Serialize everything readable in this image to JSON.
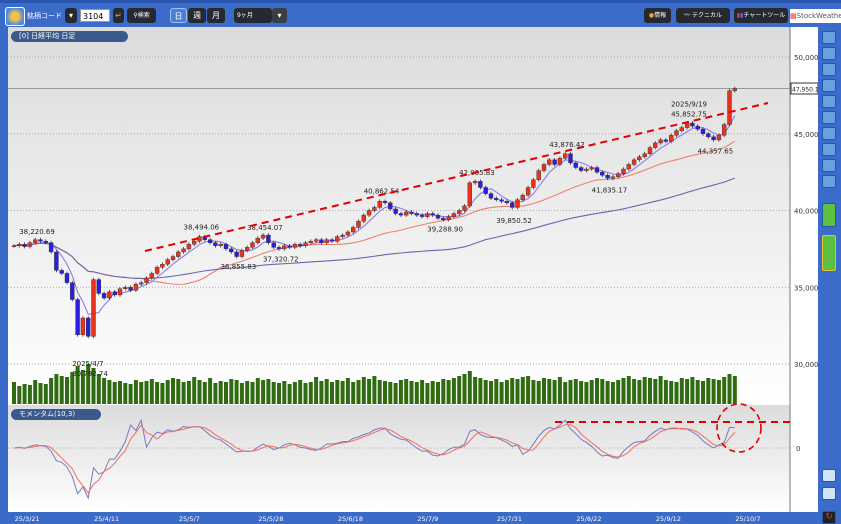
{
  "toolbar": {
    "stock_code_label": "銘柄コード",
    "stock_code_value": "3104",
    "search_label": "検索",
    "period_tabs": [
      "日",
      "週",
      "月"
    ],
    "active_period": "日",
    "range_select": "9ヶ月",
    "info_label": "情報",
    "technical_label": "テクニカル",
    "chart_tool_label": "チャートツール",
    "brand": "StockWeather"
  },
  "main_pane_title": "[0] 日経平均 日足",
  "indicator_pane_title": "モメンタム(10,3)",
  "price_axis_ticks": [
    "50,000",
    "45,000",
    "40,000",
    "35,000",
    "30,000"
  ],
  "price_axis_values": [
    50000,
    45000,
    40000,
    35000,
    30000
  ],
  "current_price_label": "47,950.1",
  "indicator_axis_tick": "0",
  "colors": {
    "up": "#e8331c",
    "down": "#2a1fe0",
    "ma_short": "#8c7ce8",
    "ma_mid": "#f08070",
    "ma_long": "#6a66b0",
    "volume": "#2f6b10",
    "annotation": "#e00000",
    "momentum": "#7a78c0",
    "signal": "#f07060"
  },
  "chart_data": {
    "type": "candlestick",
    "ylim": [
      29000,
      51500
    ],
    "grid": true,
    "close": [
      37700,
      37800,
      37650,
      37900,
      38100,
      38000,
      37900,
      37300,
      36100,
      35900,
      35300,
      34200,
      31900,
      33000,
      31800,
      35500,
      34600,
      34300,
      34700,
      34500,
      34900,
      35000,
      34800,
      35200,
      35300,
      35600,
      35900,
      36300,
      36500,
      36800,
      37000,
      37300,
      37500,
      37800,
      38000,
      38300,
      38100,
      37900,
      37700,
      37800,
      37500,
      37300,
      37000,
      37400,
      37600,
      37900,
      38200,
      38400,
      37900,
      37600,
      37500,
      37700,
      37600,
      37800,
      37700,
      37900,
      38000,
      38100,
      37900,
      38100,
      38000,
      38300,
      38400,
      38600,
      38900,
      39300,
      39700,
      40000,
      40200,
      40600,
      40500,
      40100,
      39800,
      39700,
      39900,
      39800,
      39700,
      39600,
      39800,
      39700,
      39500,
      39400,
      39600,
      39800,
      40000,
      40300,
      41800,
      41900,
      41500,
      41100,
      40800,
      40700,
      40600,
      40500,
      40200,
      40700,
      41000,
      41500,
      42000,
      42600,
      43000,
      43300,
      43000,
      43400,
      43700,
      43100,
      42800,
      42600,
      42700,
      42800,
      42500,
      42300,
      42100,
      42200,
      42400,
      42700,
      43000,
      43300,
      43500,
      43700,
      44100,
      44400,
      44600,
      44500,
      44900,
      45200,
      45400,
      45700,
      45500,
      45300,
      45000,
      44800,
      44600,
      44900,
      45600,
      47800,
      47950
    ],
    "volume": [
      22,
      18,
      20,
      19,
      24,
      21,
      20,
      26,
      30,
      28,
      27,
      32,
      38,
      34,
      40,
      36,
      30,
      26,
      24,
      22,
      23,
      21,
      20,
      24,
      22,
      23,
      25,
      22,
      21,
      24,
      26,
      25,
      22,
      23,
      27,
      24,
      22,
      26,
      21,
      23,
      22,
      25,
      24,
      21,
      23,
      22,
      26,
      24,
      25,
      22,
      21,
      23,
      20,
      22,
      24,
      21,
      22,
      27,
      23,
      25,
      22,
      24,
      23,
      26,
      22,
      24,
      27,
      25,
      28,
      24,
      23,
      22,
      21,
      24,
      25,
      23,
      22,
      24,
      21,
      23,
      22,
      25,
      24,
      26,
      28,
      30,
      33,
      27,
      26,
      24,
      23,
      25,
      22,
      24,
      26,
      25,
      27,
      28,
      24,
      23,
      26,
      25,
      24,
      27,
      22,
      24,
      25,
      23,
      22,
      24,
      26,
      25,
      23,
      22,
      24,
      26,
      28,
      25,
      24,
      27,
      26,
      25,
      28,
      24,
      23,
      22,
      26,
      25,
      27,
      24,
      23,
      26,
      25,
      24,
      27,
      30,
      28
    ],
    "moving_averages": [
      5,
      25,
      75
    ],
    "momentum": {
      "period": 10,
      "signal": 3
    },
    "annotations": [
      {
        "text": "38,220.69",
        "index": 4,
        "price": 38220.69,
        "side": "above"
      },
      {
        "text": "2025/4/7",
        "index": 14,
        "price": 30792.74,
        "side": "below1"
      },
      {
        "text": "30,792.74",
        "index": 14,
        "price": 30792.74,
        "side": "below2"
      },
      {
        "text": "38,494.06",
        "index": 35,
        "price": 38494.06,
        "side": "above"
      },
      {
        "text": "36,855.83",
        "index": 42,
        "price": 36855.83,
        "side": "below"
      },
      {
        "text": "38,454.07",
        "index": 47,
        "price": 38454.07,
        "side": "above"
      },
      {
        "text": "37,320.72",
        "index": 50,
        "price": 37320.72,
        "side": "below"
      },
      {
        "text": "40,862.54",
        "index": 69,
        "price": 40862.54,
        "side": "above"
      },
      {
        "text": "39,288.90",
        "index": 81,
        "price": 39288.9,
        "side": "below"
      },
      {
        "text": "42,065.83",
        "index": 87,
        "price": 42065.83,
        "side": "above"
      },
      {
        "text": "39,850.52",
        "index": 94,
        "price": 39850.52,
        "side": "below"
      },
      {
        "text": "43,876.42",
        "index": 104,
        "price": 43876.42,
        "side": "above"
      },
      {
        "text": "41,835.17",
        "index": 112,
        "price": 41835.17,
        "side": "below"
      },
      {
        "text": "2025/9/19",
        "index": 127,
        "price": 45852.75,
        "side": "above2"
      },
      {
        "text": "45,852.75",
        "index": 127,
        "price": 45852.75,
        "side": "above"
      },
      {
        "text": "44,357.65",
        "index": 132,
        "price": 44357.65,
        "side": "below"
      }
    ],
    "x_ticks": [
      {
        "label": "25/3/21",
        "index": 2
      },
      {
        "label": "25/4/11",
        "index": 17
      },
      {
        "label": "25/5/7",
        "index": 33
      },
      {
        "label": "25/5/28",
        "index": 48
      },
      {
        "label": "25/6/18",
        "index": 63
      },
      {
        "label": "25/7/9",
        "index": 78
      },
      {
        "label": "25/7/31",
        "index": 93
      },
      {
        "label": "25/8/22",
        "index": 108
      },
      {
        "label": "25/9/12",
        "index": 123
      },
      {
        "label": "25/10/7",
        "index": 138
      }
    ]
  }
}
